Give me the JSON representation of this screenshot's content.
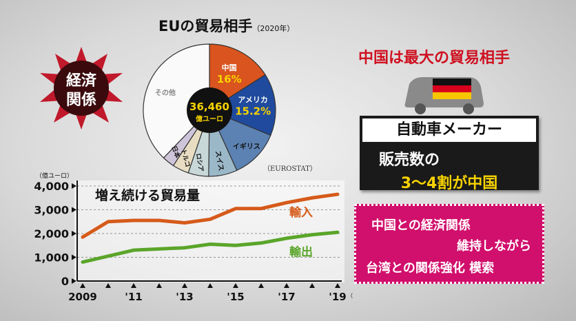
{
  "badge": {
    "line1": "経済",
    "line2": "関係"
  },
  "pie": {
    "title": "EUの貿易相手",
    "year": "（2020年）",
    "center_value": "36,460",
    "center_unit": "億ユーロ",
    "source": "（EUROSTAT）"
  },
  "headline": "中国は最大の貿易相手",
  "flag_colors": [
    "#111111",
    "#d8001c",
    "#f7c600"
  ],
  "maker_box": {
    "title": "自動車メーカー",
    "line1": "販売数の",
    "line2": "3〜4割が中国"
  },
  "note_box": {
    "line1": "中国との経済関係",
    "line2": "維持しながら",
    "line3": "台湾との関係強化 模索"
  },
  "chart_data": [
    {
      "type": "pie",
      "title": "EUの貿易相手",
      "slices": [
        {
          "label": "中国",
          "value": 16,
          "value_label": "16%",
          "color": "#d9541e"
        },
        {
          "label": "アメリカ",
          "value": 15.2,
          "value_label": "15.2%",
          "color": "#1f4a9e"
        },
        {
          "label": "イギリス",
          "value": 12,
          "color": "#5c82b3"
        },
        {
          "label": "スイス",
          "value": 7,
          "color": "#9bb8c8"
        },
        {
          "label": "ロシア",
          "value": 5,
          "color": "#c8d8d8"
        },
        {
          "label": "トルコ",
          "value": 4,
          "color": "#e8ddc2"
        },
        {
          "label": "日本",
          "value": 3,
          "color": "#cfc5da"
        },
        {
          "label": "その他",
          "value": 37.8,
          "color": "#fafafa"
        }
      ]
    },
    {
      "type": "line",
      "title": "増え続ける貿易量",
      "unit_label": "（億ユーロ）",
      "x_suffix": "（年）",
      "ylim": [
        0,
        4000
      ],
      "y_ticks": [
        "4,000",
        "3,000",
        "2,000",
        "1,000",
        "0"
      ],
      "y_tick_values": [
        4000,
        3000,
        2000,
        1000,
        0
      ],
      "x": [
        2009,
        2010,
        2011,
        2012,
        2013,
        2014,
        2015,
        2016,
        2017,
        2018,
        2019
      ],
      "x_ticks": [
        "2009",
        "'11",
        "'13",
        "'15",
        "'17",
        "'19"
      ],
      "series": [
        {
          "name": "輸入",
          "color": "#d65a1a",
          "values": [
            1850,
            2500,
            2550,
            2550,
            2450,
            2600,
            3050,
            3050,
            3300,
            3500,
            3650
          ]
        },
        {
          "name": "輸出",
          "color": "#5aa52a",
          "values": [
            800,
            1050,
            1300,
            1350,
            1400,
            1550,
            1500,
            1600,
            1800,
            1950,
            2050
          ]
        }
      ],
      "grid": true
    }
  ]
}
